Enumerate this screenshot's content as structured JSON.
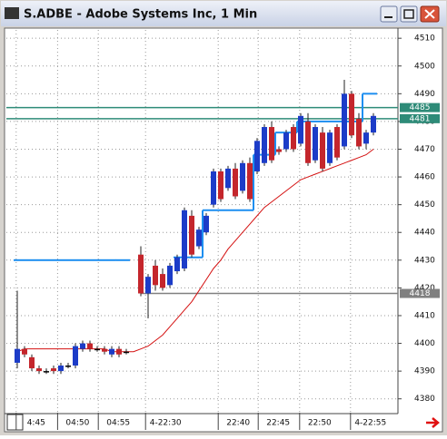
{
  "window": {
    "title": "S.ADBE - Adobe Systems Inc, 1 Min"
  },
  "chart_data": {
    "type": "candlestick",
    "candles": [
      [
        4393,
        4419,
        4391,
        4398
      ],
      [
        4398,
        4399,
        4395,
        4396
      ],
      [
        4395,
        4396,
        4390,
        4391
      ],
      [
        4391,
        4392,
        4389,
        4390
      ],
      [
        4390,
        4391,
        4389,
        4390
      ],
      [
        4391,
        4392,
        4389,
        4390
      ],
      [
        4390,
        4393,
        4389,
        4392
      ],
      [
        4392,
        4393,
        4391,
        4392
      ],
      [
        4392,
        4400,
        4391,
        4399
      ],
      [
        4398,
        4401,
        4397,
        4400
      ],
      [
        4400,
        4401,
        4397,
        4398
      ],
      [
        4398,
        4399,
        4397,
        4398
      ],
      [
        4398,
        4399,
        4396,
        4397
      ],
      [
        4396,
        4399,
        4395,
        4398
      ],
      [
        4398,
        4399,
        4395,
        4396
      ],
      [
        4397,
        4398,
        4396,
        4397
      ],
      null,
      [
        4432,
        4435,
        4417,
        4418
      ],
      [
        4418,
        4425,
        4409,
        4424
      ],
      [
        4428,
        4430,
        4419,
        4421
      ],
      [
        4425,
        4427,
        4419,
        4420
      ],
      [
        4421,
        4429,
        4420,
        4428
      ],
      [
        4426,
        4432,
        4425,
        4431
      ],
      [
        4427,
        4449,
        4426,
        4448
      ],
      [
        4446,
        4448,
        4431,
        4432
      ],
      [
        4435,
        4442,
        4434,
        4441
      ],
      [
        4440,
        4447,
        4439,
        4446
      ],
      [
        4450,
        4463,
        4449,
        4462
      ],
      [
        4462,
        4463,
        4451,
        4452
      ],
      [
        4456,
        4464,
        4455,
        4463
      ],
      [
        4463,
        4465,
        4452,
        4453
      ],
      [
        4455,
        4466,
        4454,
        4465
      ],
      [
        4465,
        4467,
        4451,
        4452
      ],
      [
        4462,
        4474,
        4461,
        4473
      ],
      [
        4465,
        4479,
        4464,
        4478
      ],
      [
        4478,
        4480,
        4465,
        4466
      ],
      [
        4470,
        4471,
        4468,
        4469
      ],
      [
        4470,
        4477,
        4469,
        4476
      ],
      [
        4478,
        4479,
        4469,
        4470
      ],
      [
        4472,
        4483,
        4471,
        4482
      ],
      [
        4480,
        4483,
        4464,
        4465
      ],
      [
        4466,
        4479,
        4465,
        4478
      ],
      [
        4476,
        4478,
        4462,
        4463
      ],
      [
        4465,
        4477,
        4464,
        4476
      ],
      [
        4478,
        4479,
        4466,
        4467
      ],
      [
        4471,
        4495,
        4470,
        4490
      ],
      [
        4490,
        4491,
        4474,
        4475
      ],
      [
        4481,
        4483,
        4470,
        4471
      ],
      [
        4472,
        4477,
        4470,
        4476
      ],
      [
        4476,
        4483,
        4475,
        4482
      ]
    ],
    "up_color": "#1c3cc8",
    "down_color": "#c4262c",
    "moving_average": {
      "color": "#d41010",
      "values": [
        4397,
        4398,
        4398,
        4398,
        4398,
        4398,
        4398,
        4398,
        4398,
        4398,
        4398,
        4398,
        4398,
        4397,
        4397,
        4397,
        4397,
        4398,
        4399,
        4401,
        4403,
        4406,
        4409,
        4412,
        4415,
        4419,
        4423,
        4427,
        4430,
        4434,
        4437,
        4440,
        4443,
        4446,
        4449,
        4451,
        4453,
        4455,
        4457,
        4459,
        4460,
        4461,
        4462,
        4463,
        4464,
        4465,
        4466,
        4467,
        4468,
        4470
      ]
    },
    "step_line": {
      "color": "#1e8ff0",
      "values": [
        4430,
        4430,
        4430,
        4430,
        4430,
        4430,
        4430,
        4430,
        4430,
        4430,
        4430,
        4430,
        4430,
        4430,
        4430,
        4430,
        null,
        null,
        null,
        null,
        null,
        null,
        4431,
        4431,
        4431,
        4431,
        4448,
        4448,
        4448,
        4448,
        4448,
        4448,
        4448,
        4468,
        4468,
        4468,
        4476,
        4476,
        4476,
        4480,
        4480,
        4480,
        4480,
        4480,
        4480,
        4480,
        4480,
        4480,
        4490,
        4490
      ]
    },
    "levels": [
      {
        "value": 4485,
        "color": "#2e8b78"
      },
      {
        "value": 4481,
        "color": "#2e8b78"
      },
      {
        "value": 4418,
        "color": "#808080"
      }
    ],
    "ylim": [
      4375,
      4513
    ],
    "yticks": [
      4380,
      4390,
      4400,
      4410,
      4420,
      4430,
      4440,
      4450,
      4460,
      4470,
      4480,
      4490,
      4500,
      4510
    ],
    "xticks": [
      {
        "value": 2.6,
        "label": "4:45"
      },
      {
        "value": 8.3,
        "label": "04:50"
      },
      {
        "value": 13.9,
        "label": "04:55"
      },
      {
        "value": 20.4,
        "label": "4-22:30"
      },
      {
        "value": 30.4,
        "label": "22:40"
      },
      {
        "value": 35.9,
        "label": "22:45"
      },
      {
        "value": 41.6,
        "label": "22:50"
      },
      {
        "value": 48.6,
        "label": "4-22:55"
      }
    ],
    "grid": true
  }
}
